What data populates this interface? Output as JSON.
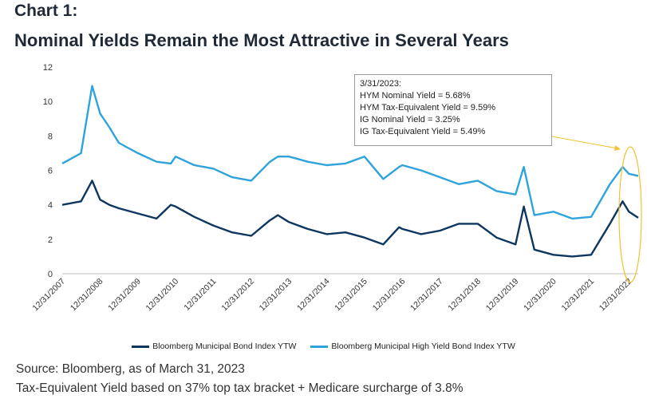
{
  "header": {
    "chart_label": "Chart 1:",
    "chart_title": "Nominal Yields Remain the Most Attractive in Several Years"
  },
  "annotation": {
    "date": "3/31/2023:",
    "lines": [
      "HYM Nominal Yield = 5.68%",
      "HYM Tax-Equivalent Yield = 9.59%",
      "IG Nominal Yield = 3.25%",
      "IG Tax-Equivalent Yield = 5.49%"
    ]
  },
  "footer": {
    "source": "Source: Bloomberg, as of March 31, 2023",
    "note": "Tax-Equivalent Yield based on 37% top tax bracket + Medicare surcharge of 3.8%"
  },
  "colors": {
    "ig": "#0d3660",
    "hy": "#2ea3dc",
    "highlight": "#f2c230"
  },
  "chart_data": {
    "type": "line",
    "title": "",
    "xlabel": "",
    "ylabel": "",
    "ylim": [
      0,
      12
    ],
    "yticks": [
      "0",
      "2",
      "4",
      "6",
      "8",
      "10",
      "12"
    ],
    "xticks": [
      "12/31/2007",
      "12/31/2008",
      "12/31/2009",
      "12/31/2010",
      "12/31/2011",
      "12/31/2012",
      "12/31/2013",
      "12/31/2014",
      "12/31/2015",
      "12/31/2016",
      "12/31/2017",
      "12/31/2018",
      "12/31/2019",
      "12/31/2020",
      "12/31/2021",
      "12/31/2022"
    ],
    "x": [
      "2007-12-31",
      "2008-06-30",
      "2008-10-15",
      "2008-12-31",
      "2009-03-31",
      "2009-06-30",
      "2009-12-31",
      "2010-06-30",
      "2010-11-15",
      "2010-12-31",
      "2011-06-30",
      "2011-12-31",
      "2012-06-30",
      "2012-12-31",
      "2013-06-30",
      "2013-09-15",
      "2013-12-31",
      "2014-06-30",
      "2014-12-31",
      "2015-06-30",
      "2015-12-31",
      "2016-06-30",
      "2016-11-30",
      "2016-12-31",
      "2017-06-30",
      "2017-12-31",
      "2018-06-30",
      "2018-12-31",
      "2019-06-30",
      "2019-12-31",
      "2020-03-20",
      "2020-06-30",
      "2020-12-31",
      "2021-06-30",
      "2021-12-31",
      "2022-06-30",
      "2022-10-31",
      "2022-12-31",
      "2023-03-31"
    ],
    "series": [
      {
        "name": "Bloomberg Municipal Bond Index YTW",
        "values": [
          4.0,
          4.2,
          5.4,
          4.3,
          4.0,
          3.8,
          3.5,
          3.2,
          4.0,
          3.9,
          3.3,
          2.8,
          2.4,
          2.2,
          3.1,
          3.4,
          3.0,
          2.6,
          2.3,
          2.4,
          2.1,
          1.7,
          2.7,
          2.6,
          2.3,
          2.5,
          2.9,
          2.9,
          2.1,
          1.7,
          3.9,
          1.4,
          1.1,
          1.0,
          1.1,
          2.9,
          4.2,
          3.6,
          3.25
        ]
      },
      {
        "name": "Bloomberg Municipal High Yield Bond Index YTW",
        "values": [
          6.4,
          7.0,
          10.9,
          9.3,
          8.5,
          7.6,
          7.0,
          6.5,
          6.4,
          6.8,
          6.3,
          6.1,
          5.6,
          5.4,
          6.5,
          6.8,
          6.8,
          6.5,
          6.3,
          6.4,
          6.8,
          5.5,
          6.2,
          6.3,
          6.0,
          5.6,
          5.2,
          5.4,
          4.8,
          4.6,
          6.2,
          3.4,
          3.6,
          3.2,
          3.3,
          5.2,
          6.2,
          5.8,
          5.68
        ]
      }
    ],
    "grid": false,
    "legend": "bottom"
  }
}
